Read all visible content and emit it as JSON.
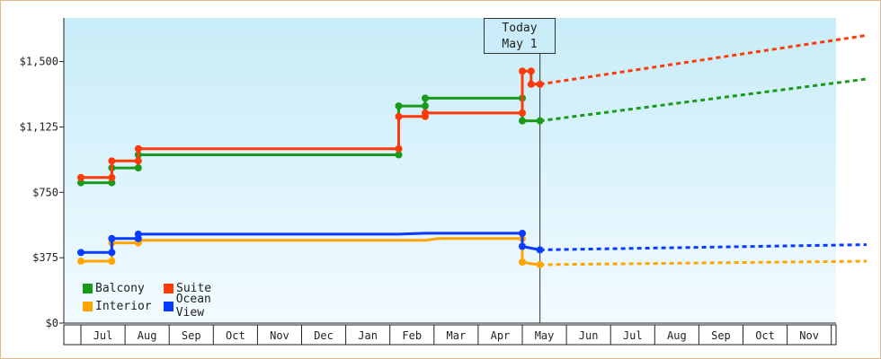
{
  "chart_data": {
    "type": "line",
    "title": "",
    "xlabel": "",
    "ylabel": "",
    "ylim": [
      0,
      1750
    ],
    "yticks": [
      0,
      375,
      750,
      1125,
      1500
    ],
    "ytick_labels": [
      "$0",
      "$375",
      "$750",
      "$1,125",
      "$1,500"
    ],
    "xtick_labels": [
      "Jul",
      "Aug",
      "Sep",
      "Oct",
      "Nov",
      "Dec",
      "Jan",
      "Feb",
      "Mar",
      "Apr",
      "May",
      "Jun",
      "Jul",
      "Aug",
      "Sep",
      "Oct",
      "Nov"
    ],
    "today_annotation": {
      "line1": "Today",
      "line2": "May 1"
    },
    "legend_position": "bottom-left",
    "grid": false,
    "colors": {
      "Balcony": "#1a9a1a",
      "Suite": "#ff3a0a",
      "Interior": "#ffa500",
      "Ocean View": "#0a3aff"
    },
    "series": [
      {
        "name": "Balcony",
        "color": "#1a9a1a",
        "history": [
          [
            0,
            805
          ],
          [
            0.7,
            805
          ],
          [
            0.7,
            890
          ],
          [
            1.3,
            890
          ],
          [
            1.3,
            965
          ],
          [
            7.2,
            965
          ],
          [
            7.2,
            1245
          ],
          [
            7.8,
            1245
          ],
          [
            7.8,
            1290
          ],
          [
            10,
            1290
          ],
          [
            10,
            1160
          ],
          [
            10.4,
            1160
          ]
        ],
        "forecast": [
          [
            10.4,
            1160
          ],
          [
            17.8,
            1400
          ]
        ]
      },
      {
        "name": "Suite",
        "color": "#ff3a0a",
        "history": [
          [
            0,
            835
          ],
          [
            0.7,
            835
          ],
          [
            0.7,
            930
          ],
          [
            1.3,
            930
          ],
          [
            1.3,
            1000
          ],
          [
            7.2,
            1000
          ],
          [
            7.2,
            1185
          ],
          [
            7.8,
            1185
          ],
          [
            7.8,
            1205
          ],
          [
            10,
            1205
          ],
          [
            10,
            1445
          ],
          [
            10.2,
            1445
          ],
          [
            10.2,
            1370
          ],
          [
            10.4,
            1370
          ]
        ],
        "forecast": [
          [
            10.4,
            1370
          ],
          [
            17.8,
            1650
          ]
        ]
      },
      {
        "name": "Interior",
        "color": "#ffa500",
        "history": [
          [
            0,
            355
          ],
          [
            0.7,
            355
          ],
          [
            0.7,
            460
          ],
          [
            1.3,
            460
          ],
          [
            1.3,
            475
          ],
          [
            7.2,
            475
          ],
          [
            7.8,
            475
          ],
          [
            8.1,
            485
          ],
          [
            10,
            485
          ],
          [
            10,
            350
          ],
          [
            10.2,
            340
          ],
          [
            10.4,
            335
          ]
        ],
        "forecast": [
          [
            10.4,
            335
          ],
          [
            17.8,
            355
          ]
        ]
      },
      {
        "name": "Ocean View",
        "color": "#0a3aff",
        "history": [
          [
            0,
            405
          ],
          [
            0.7,
            405
          ],
          [
            0.7,
            485
          ],
          [
            1.3,
            485
          ],
          [
            1.3,
            510
          ],
          [
            7.2,
            510
          ],
          [
            7.8,
            515
          ],
          [
            10,
            515
          ],
          [
            10,
            440
          ],
          [
            10.2,
            430
          ],
          [
            10.4,
            420
          ]
        ],
        "forecast": [
          [
            10.4,
            420
          ],
          [
            17.8,
            450
          ]
        ]
      }
    ]
  }
}
